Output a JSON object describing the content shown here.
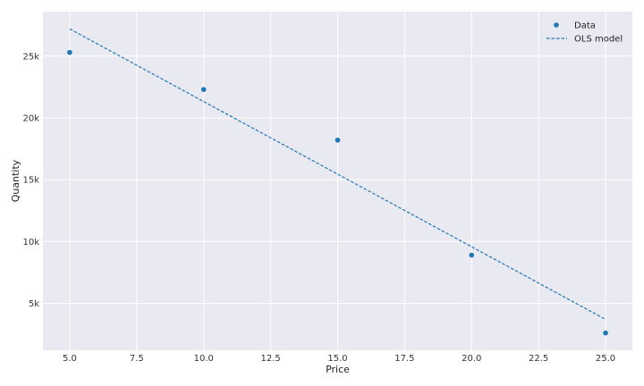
{
  "chart_data": {
    "type": "scatter",
    "title": "",
    "xlabel": "Price",
    "ylabel": "Quantity",
    "xlim": [
      4.0,
      26.0
    ],
    "ylim": [
      1200,
      28600
    ],
    "x_ticks": [
      5.0,
      7.5,
      10.0,
      12.5,
      15.0,
      17.5,
      20.0,
      22.5,
      25.0
    ],
    "x_tick_labels": [
      "5.0",
      "7.5",
      "10.0",
      "12.5",
      "15.0",
      "17.5",
      "20.0",
      "22.5",
      "25.0"
    ],
    "y_ticks": [
      5000,
      10000,
      15000,
      20000,
      25000
    ],
    "y_tick_labels": [
      "5k",
      "10k",
      "15k",
      "20k",
      "25k"
    ],
    "grid": true,
    "legend_position": "top-right",
    "series": [
      {
        "name": "Data",
        "kind": "scatter",
        "color": "#1f77b4",
        "x": [
          5,
          10,
          15,
          20,
          25
        ],
        "y": [
          25300,
          22300,
          18200,
          8900,
          2600
        ]
      },
      {
        "name": "OLS model",
        "kind": "line",
        "style": "dashed",
        "color": "#1f77b4",
        "x": [
          5,
          25
        ],
        "y": [
          27200,
          3700
        ]
      }
    ]
  },
  "colors": {
    "plot_background": "#e9e9f1",
    "grid": "#ffffff",
    "accent": "#1f77b4"
  }
}
